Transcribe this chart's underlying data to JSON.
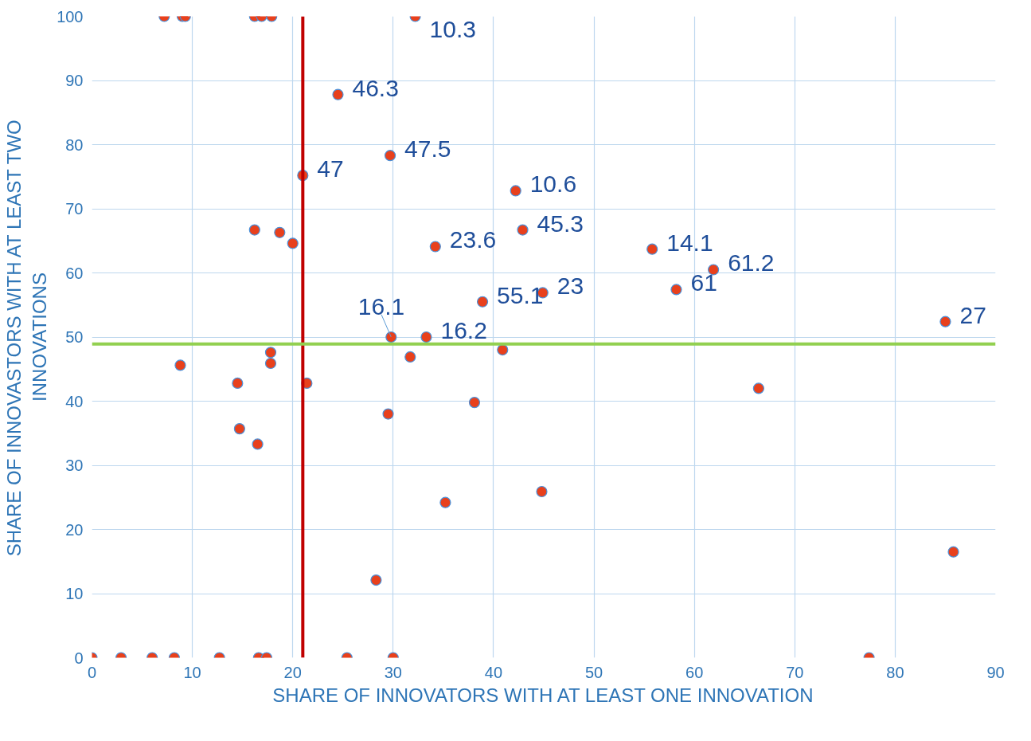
{
  "chart_data": {
    "type": "scatter",
    "xlabel": "SHARE OF INNOVATORS WITH AT LEAST ONE INNOVATION",
    "ylabel": "SHARE OF INNOVASTORS WITH AT LEAST TWO\nINNOVATIONS",
    "x": [
      7.2,
      9.0,
      9.3,
      16.2,
      16.9,
      17.9,
      32.2,
      24.5,
      29.7,
      21.0,
      42.2,
      42.9,
      34.2,
      55.8,
      61.9,
      58.2,
      38.9,
      44.9,
      29.8,
      33.3,
      85.0,
      16.2,
      18.7,
      20.0,
      8.8,
      17.8,
      17.8,
      14.5,
      21.4,
      31.7,
      40.9,
      14.7,
      16.5,
      29.5,
      38.1,
      66.4,
      35.2,
      44.8,
      28.3,
      85.8,
      0,
      2.9,
      6.0,
      8.2,
      12.7,
      16.6,
      17.4,
      25.4,
      30.0,
      77.4
    ],
    "values": [
      100,
      100,
      100,
      100,
      100,
      100,
      100,
      87.8,
      78.3,
      75.2,
      72.8,
      66.7,
      64.1,
      63.7,
      60.5,
      57.4,
      55.5,
      56.9,
      50.0,
      50.0,
      52.4,
      66.7,
      66.3,
      64.6,
      45.6,
      47.6,
      45.9,
      42.8,
      42.8,
      46.9,
      48.0,
      35.7,
      33.3,
      38.0,
      39.8,
      42.0,
      24.2,
      25.9,
      12.1,
      16.5,
      0,
      0,
      0,
      0,
      0,
      0,
      0,
      0,
      0,
      0
    ],
    "color": "#e8401c",
    "marker": "circle",
    "xlim": [
      0,
      90
    ],
    "xticks": [
      0,
      10,
      20,
      30,
      40,
      50,
      60,
      70,
      80,
      90
    ],
    "ylim": [
      0,
      100
    ],
    "yticks": [
      0,
      10,
      20,
      30,
      40,
      50,
      60,
      70,
      80,
      90,
      100
    ],
    "grid": true,
    "ref_lines": [
      {
        "axis": "x",
        "value": 21,
        "color": "#c00000"
      },
      {
        "axis": "y",
        "value": 48.9,
        "color": "#92d050"
      }
    ],
    "annotations": [
      {
        "text": "10.3",
        "x": 32.2,
        "y": 100
      },
      {
        "text": "46.3",
        "x": 24.5,
        "y": 87.8
      },
      {
        "text": "47.5",
        "x": 29.7,
        "y": 78.3
      },
      {
        "text": "47",
        "x": 21.0,
        "y": 75.2
      },
      {
        "text": "10.6",
        "x": 42.2,
        "y": 72.8
      },
      {
        "text": "45.3",
        "x": 42.9,
        "y": 66.7
      },
      {
        "text": "23.6",
        "x": 34.2,
        "y": 64.1
      },
      {
        "text": "14.1",
        "x": 55.8,
        "y": 63.7
      },
      {
        "text": "61.2",
        "x": 61.9,
        "y": 60.5
      },
      {
        "text": "61",
        "x": 58.2,
        "y": 57.4
      },
      {
        "text": "55.1",
        "x": 38.9,
        "y": 55.5
      },
      {
        "text": "23",
        "x": 44.9,
        "y": 56.9
      },
      {
        "text": "16.1",
        "x": 29.8,
        "y": 50.0
      },
      {
        "text": "16.2",
        "x": 33.3,
        "y": 50.0
      },
      {
        "text": "27",
        "x": 85.0,
        "y": 52.4
      }
    ]
  }
}
